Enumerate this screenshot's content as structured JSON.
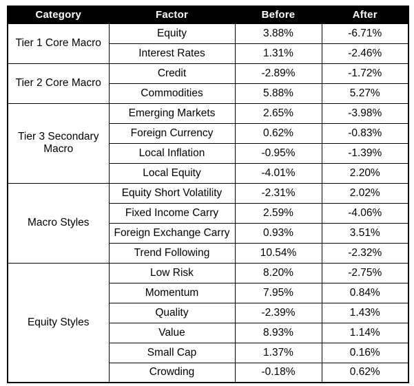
{
  "chart_data": {
    "type": "table",
    "columns": [
      "Category",
      "Factor",
      "Before",
      "After"
    ],
    "groups": [
      {
        "category": "Tier 1 Core Macro",
        "rows": [
          {
            "factor": "Equity",
            "before": "3.88%",
            "after": "-6.71%"
          },
          {
            "factor": "Interest Rates",
            "before": "1.31%",
            "after": "-2.46%"
          }
        ]
      },
      {
        "category": "Tier 2 Core Macro",
        "rows": [
          {
            "factor": "Credit",
            "before": "-2.89%",
            "after": "-1.72%"
          },
          {
            "factor": "Commodities",
            "before": "5.88%",
            "after": "5.27%"
          }
        ]
      },
      {
        "category": "Tier 3 Secondary Macro",
        "rows": [
          {
            "factor": "Emerging Markets",
            "before": "2.65%",
            "after": "-3.98%"
          },
          {
            "factor": "Foreign Currency",
            "before": "0.62%",
            "after": "-0.83%"
          },
          {
            "factor": "Local Inflation",
            "before": "-0.95%",
            "after": "-1.39%"
          },
          {
            "factor": "Local Equity",
            "before": "-4.01%",
            "after": "2.20%"
          }
        ]
      },
      {
        "category": "Macro Styles",
        "rows": [
          {
            "factor": "Equity Short Volatility",
            "before": "-2.31%",
            "after": "2.02%"
          },
          {
            "factor": "Fixed Income Carry",
            "before": "2.59%",
            "after": "-4.06%"
          },
          {
            "factor": "Foreign Exchange Carry",
            "before": "0.93%",
            "after": "3.51%"
          },
          {
            "factor": "Trend Following",
            "before": "10.54%",
            "after": "-2.32%"
          }
        ]
      },
      {
        "category": "Equity Styles",
        "rows": [
          {
            "factor": "Low Risk",
            "before": "8.20%",
            "after": "-2.75%"
          },
          {
            "factor": "Momentum",
            "before": "7.95%",
            "after": "0.84%"
          },
          {
            "factor": "Quality",
            "before": "-2.39%",
            "after": "1.43%"
          },
          {
            "factor": "Value",
            "before": "8.93%",
            "after": "1.14%"
          },
          {
            "factor": "Small Cap",
            "before": "1.37%",
            "after": "0.16%"
          },
          {
            "factor": "Crowding",
            "before": "-0.18%",
            "after": "0.62%"
          }
        ]
      }
    ]
  },
  "colors": {
    "header_bg": "#000000",
    "header_text": "#ffffff",
    "border": "#000000",
    "body_bg": "#ffffff",
    "body_text": "#000000"
  }
}
